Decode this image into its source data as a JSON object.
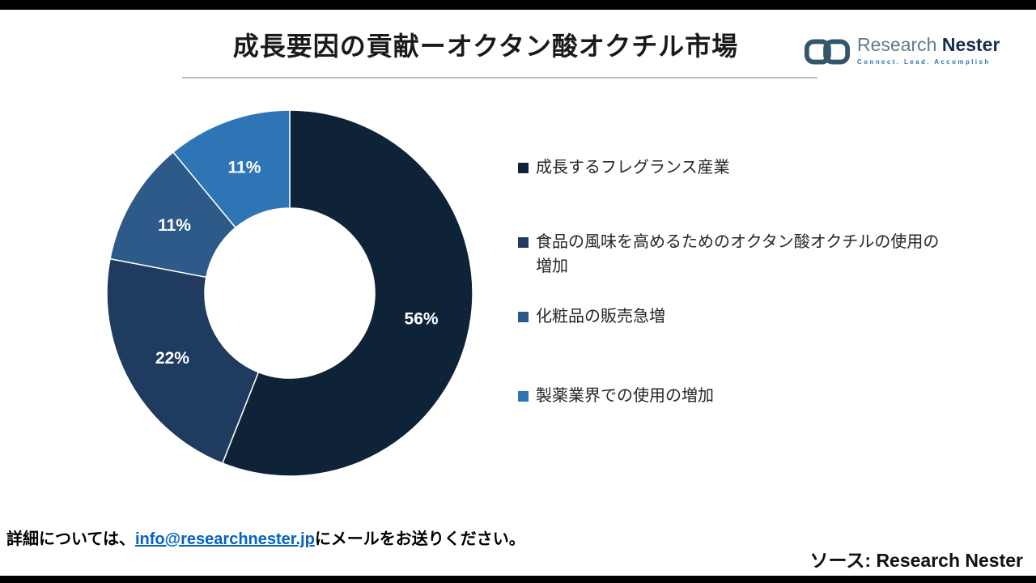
{
  "page": {
    "title": "成長要因の貢献ーオクタン酸オクチル市場",
    "footer_note_prefix": "詳細については、",
    "footer_email": "info@researchnester.jp",
    "footer_note_suffix": "にメールをお送りください。",
    "source_label": "ソース: Research Nester"
  },
  "logo": {
    "brand_first": "Research",
    "brand_second": " Nester",
    "tagline": "Connect. Lead. Accomplish"
  },
  "chart_data": {
    "type": "pie",
    "donut": true,
    "title": "成長要因の貢献ーオクタン酸オクチル市場",
    "start_angle_deg": 0,
    "direction": "clockwise",
    "legend_position": "right",
    "labels": "percent-inside",
    "series": [
      {
        "name": "成長するフレグランス産業",
        "value": 56,
        "label": "56%",
        "color": "#0e2337"
      },
      {
        "name": "食品の風味を高めるためのオクタン酸オクチルの使用の増加",
        "value": 22,
        "label": "22%",
        "color": "#1f3b5f"
      },
      {
        "name": "化粧品の販売急増",
        "value": 11,
        "label": "11%",
        "color": "#2d5a88"
      },
      {
        "name": "製薬業界での使用の増加",
        "value": 11,
        "label": "11%",
        "color": "#2e75b6"
      }
    ]
  }
}
